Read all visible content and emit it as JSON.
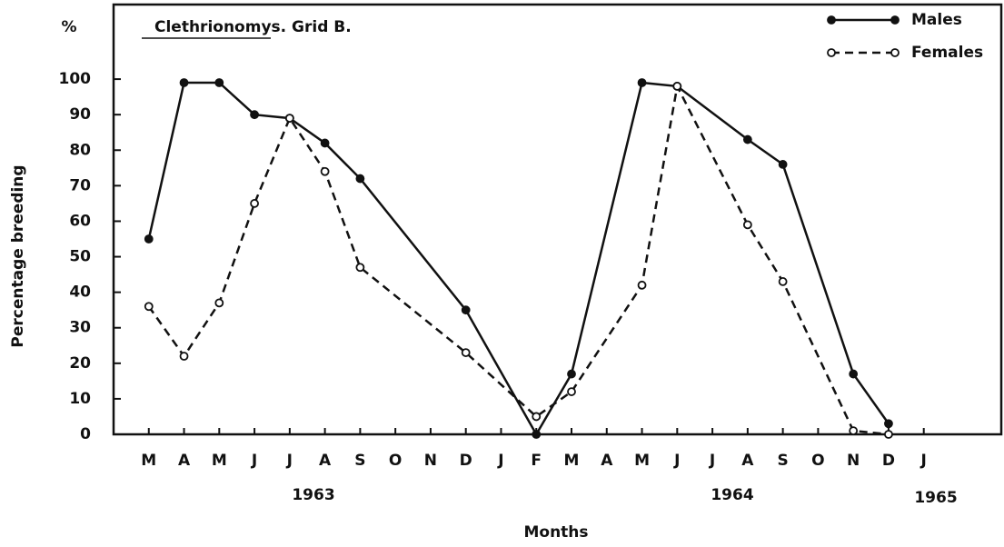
{
  "chart_data": {
    "type": "line",
    "title": "Clethrionomys. Grid B.",
    "y_unit": "%",
    "ylabel": "Percentage breeding",
    "xlabel": "Months",
    "years": [
      "1963",
      "1964",
      "1965"
    ],
    "xlim": [
      -1,
      24.2
    ],
    "xticks": [
      {
        "value": 0,
        "label": "M"
      },
      {
        "value": 1,
        "label": "A"
      },
      {
        "value": 2,
        "label": "M"
      },
      {
        "value": 3,
        "label": "J"
      },
      {
        "value": 4,
        "label": "J"
      },
      {
        "value": 5,
        "label": "A"
      },
      {
        "value": 6,
        "label": "S"
      },
      {
        "value": 7,
        "label": "O"
      },
      {
        "value": 8,
        "label": "N"
      },
      {
        "value": 9,
        "label": "D"
      },
      {
        "value": 10,
        "label": "J"
      },
      {
        "value": 11,
        "label": "F"
      },
      {
        "value": 12,
        "label": "M"
      },
      {
        "value": 13,
        "label": "A"
      },
      {
        "value": 14,
        "label": "M"
      },
      {
        "value": 15,
        "label": "J"
      },
      {
        "value": 16,
        "label": "J"
      },
      {
        "value": 17,
        "label": "A"
      },
      {
        "value": 18,
        "label": "S"
      },
      {
        "value": 19,
        "label": "O"
      },
      {
        "value": 20,
        "label": "N"
      },
      {
        "value": 21,
        "label": "D"
      },
      {
        "value": 22,
        "label": "J"
      }
    ],
    "ylim": [
      0,
      121
    ],
    "yticks": [
      0,
      10,
      20,
      30,
      40,
      50,
      60,
      70,
      80,
      90,
      100
    ],
    "legend": "top-right",
    "series": [
      {
        "name": "Males",
        "color": "#111",
        "dash": "solid",
        "marker": "filled",
        "x": [
          0,
          1,
          2,
          3,
          4,
          5,
          6,
          9,
          11,
          12,
          14,
          15,
          17,
          18,
          20,
          21
        ],
        "values": [
          55,
          99,
          99,
          90,
          89,
          82,
          72,
          35,
          0,
          17,
          99,
          98,
          83,
          76,
          17,
          3
        ]
      },
      {
        "name": "Females",
        "color": "#111",
        "dash": "dashed",
        "marker": "open",
        "x": [
          0,
          1,
          2,
          3,
          4,
          5,
          6,
          9,
          11,
          12,
          14,
          15,
          17,
          18,
          20,
          21
        ],
        "values": [
          36,
          22,
          37,
          65,
          89,
          74,
          47,
          23,
          5,
          12,
          42,
          98,
          59,
          43,
          1,
          0
        ]
      }
    ]
  }
}
